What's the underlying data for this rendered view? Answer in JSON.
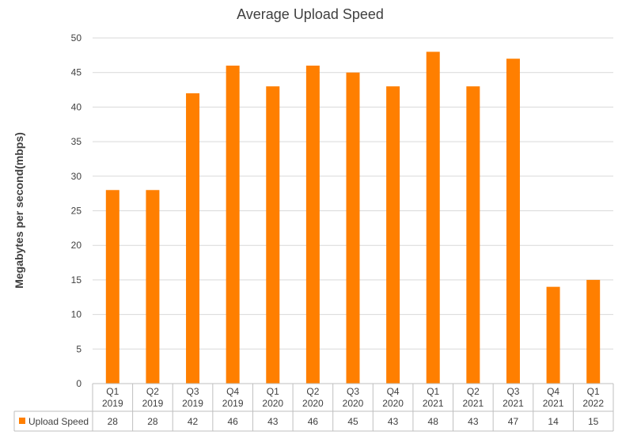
{
  "chart_data": {
    "type": "bar",
    "title": "Average Upload Speed",
    "xlabel": "",
    "ylabel": "Megabytes per second(mbps)",
    "ylim": [
      0,
      50
    ],
    "yticks": [
      0,
      5,
      10,
      15,
      20,
      25,
      30,
      35,
      40,
      45,
      50
    ],
    "grid": true,
    "legend": "data-table",
    "categories": [
      [
        "Q1",
        "2019"
      ],
      [
        "Q2",
        "2019"
      ],
      [
        "Q3",
        "2019"
      ],
      [
        "Q4",
        "2019"
      ],
      [
        "Q1",
        "2020"
      ],
      [
        "Q2",
        "2020"
      ],
      [
        "Q3",
        "2020"
      ],
      [
        "Q4",
        "2020"
      ],
      [
        "Q1",
        "2021"
      ],
      [
        "Q2",
        "2021"
      ],
      [
        "Q3",
        "2021"
      ],
      [
        "Q4",
        "2021"
      ],
      [
        "Q1",
        "2022"
      ]
    ],
    "series": [
      {
        "name": "Upload Speed",
        "color": "#FF7F00",
        "values": [
          28,
          28,
          42,
          46,
          43,
          46,
          45,
          43,
          48,
          43,
          47,
          14,
          15
        ]
      }
    ]
  }
}
